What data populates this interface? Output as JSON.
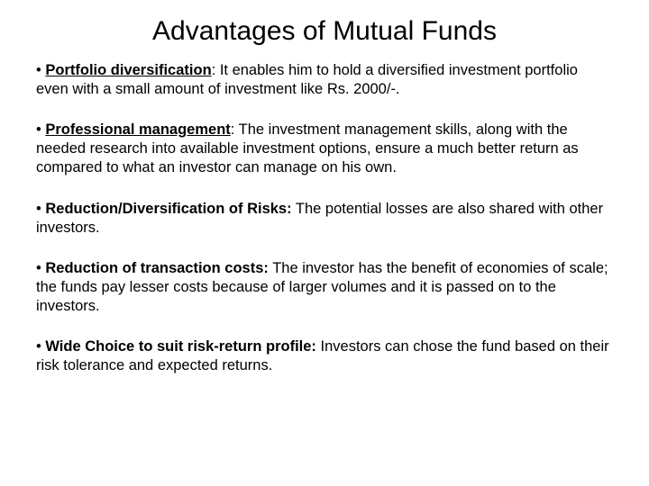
{
  "slide": {
    "title": "Advantages of Mutual Funds",
    "bullets": [
      {
        "heading": "Portfolio diversification",
        "separator": ": ",
        "body": "It enables him to hold a diversified investment portfolio even with a small amount of investment like Rs. 2000/-."
      },
      {
        "heading": "Professional management",
        "separator": ": ",
        "body": "The investment management skills, along with the needed research into available investment options, ensure a much better return as compared to what an investor can manage on his own."
      },
      {
        "heading": "Reduction/Diversification of Risks:",
        "separator": " ",
        "body": "The potential losses are also shared with other investors."
      },
      {
        "heading": "Reduction of transaction costs:",
        "separator": " ",
        "body": "The investor has the benefit of economies of scale; the funds pay lesser costs because of larger volumes and it is passed on to the investors."
      },
      {
        "heading": "Wide Choice to suit risk-return profile:",
        "separator": " ",
        "body": "Investors can chose the fund based on their risk tolerance and expected returns."
      }
    ]
  },
  "style": {
    "background_color": "#ffffff",
    "text_color": "#000000",
    "title_fontsize": 30,
    "body_fontsize": 16.5,
    "font_family": "Arial"
  }
}
